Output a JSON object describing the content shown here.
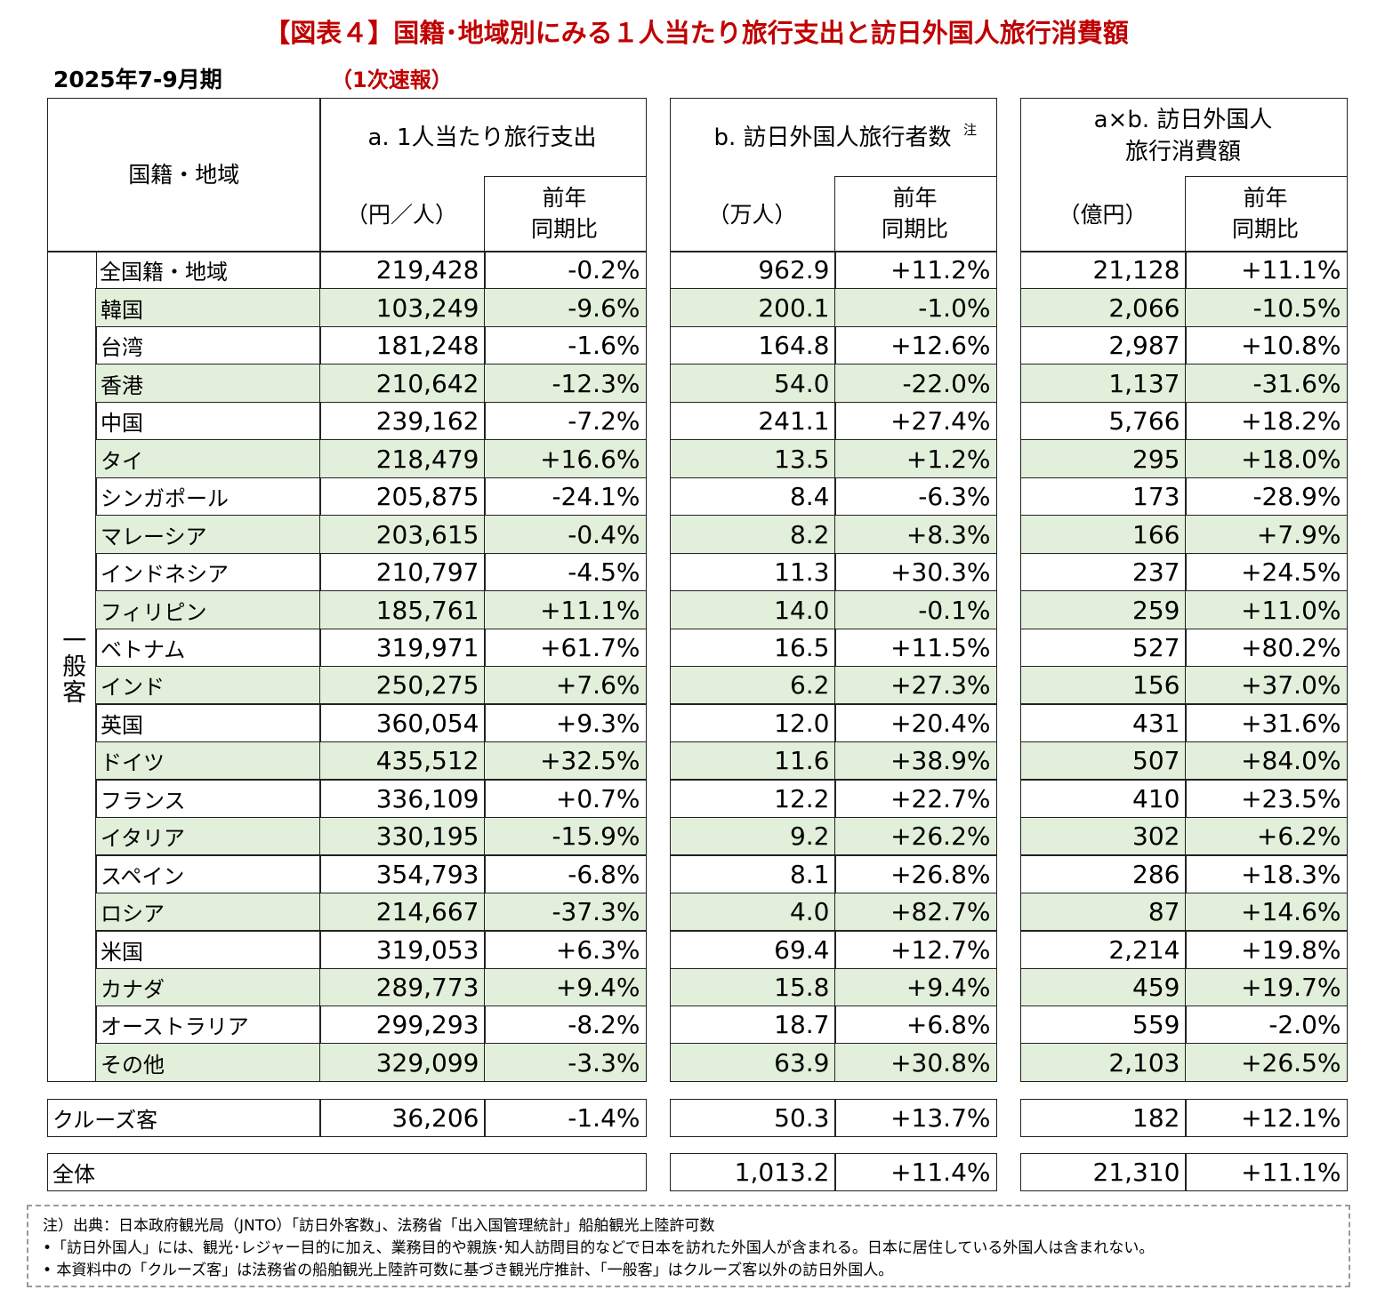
{
  "header": {
    "title": "【図表４】国籍･地域別にみる１人当たり旅行支出と訪日外国人旅行消費額",
    "period": "2025年7-9月期",
    "status": "（1次速報）"
  },
  "table": {
    "region_header": "国籍・地域",
    "group_label": "一般客",
    "columns": [
      {
        "title": [
          "a. 1人当たり旅行支出"
        ],
        "unit": "（円／人）",
        "yoy": [
          "前年",
          "同期比"
        ]
      },
      {
        "title": [
          "b. 訪日外国人旅行者数"
        ],
        "note_mark": "注",
        "unit": "（万人）",
        "yoy": [
          "前年",
          "同期比"
        ]
      },
      {
        "title": [
          "a×b. 訪日外国人",
          "旅行消費額"
        ],
        "unit": "（億円）",
        "yoy": [
          "前年",
          "同期比"
        ]
      }
    ],
    "rows": [
      [
        "全国籍・地域",
        "219,428",
        "-0.2%",
        "962.9",
        "+11.2%",
        "21,128",
        "+11.1%"
      ],
      [
        "韓国",
        "103,249",
        "-9.6%",
        "200.1",
        "-1.0%",
        "2,066",
        "-10.5%"
      ],
      [
        "台湾",
        "181,248",
        "-1.6%",
        "164.8",
        "+12.6%",
        "2,987",
        "+10.8%"
      ],
      [
        "香港",
        "210,642",
        "-12.3%",
        "54.0",
        "-22.0%",
        "1,137",
        "-31.6%"
      ],
      [
        "中国",
        "239,162",
        "-7.2%",
        "241.1",
        "+27.4%",
        "5,766",
        "+18.2%"
      ],
      [
        "タイ",
        "218,479",
        "+16.6%",
        "13.5",
        "+1.2%",
        "295",
        "+18.0%"
      ],
      [
        "シンガポール",
        "205,875",
        "-24.1%",
        "8.4",
        "-6.3%",
        "173",
        "-28.9%"
      ],
      [
        "マレーシア",
        "203,615",
        "-0.4%",
        "8.2",
        "+8.3%",
        "166",
        "+7.9%"
      ],
      [
        "インドネシア",
        "210,797",
        "-4.5%",
        "11.3",
        "+30.3%",
        "237",
        "+24.5%"
      ],
      [
        "フィリピン",
        "185,761",
        "+11.1%",
        "14.0",
        "-0.1%",
        "259",
        "+11.0%"
      ],
      [
        "ベトナム",
        "319,971",
        "+61.7%",
        "16.5",
        "+11.5%",
        "527",
        "+80.2%"
      ],
      [
        "インド",
        "250,275",
        "+7.6%",
        "6.2",
        "+27.3%",
        "156",
        "+37.0%"
      ],
      [
        "英国",
        "360,054",
        "+9.3%",
        "12.0",
        "+20.4%",
        "431",
        "+31.6%"
      ],
      [
        "ドイツ",
        "435,512",
        "+32.5%",
        "11.6",
        "+38.9%",
        "507",
        "+84.0%"
      ],
      [
        "フランス",
        "336,109",
        "+0.7%",
        "12.2",
        "+22.7%",
        "410",
        "+23.5%"
      ],
      [
        "イタリア",
        "330,195",
        "-15.9%",
        "9.2",
        "+26.2%",
        "302",
        "+6.2%"
      ],
      [
        "スペイン",
        "354,793",
        "-6.8%",
        "8.1",
        "+26.8%",
        "286",
        "+18.3%"
      ],
      [
        "ロシア",
        "214,667",
        "-37.3%",
        "4.0",
        "+82.7%",
        "87",
        "+14.6%"
      ],
      [
        "米国",
        "319,053",
        "+6.3%",
        "69.4",
        "+12.7%",
        "2,214",
        "+19.8%"
      ],
      [
        "カナダ",
        "289,773",
        "+9.4%",
        "15.8",
        "+9.4%",
        "459",
        "+19.7%"
      ],
      [
        "オーストラリア",
        "299,293",
        "-8.2%",
        "18.7",
        "+6.8%",
        "559",
        "-2.0%"
      ],
      [
        "その他",
        "329,099",
        "-3.3%",
        "63.9",
        "+30.8%",
        "2,103",
        "+26.5%"
      ]
    ],
    "cruise": [
      "クルーズ客",
      "36,206",
      "-1.4%",
      "50.3",
      "+13.7%",
      "182",
      "+12.1%"
    ],
    "total": {
      "label": "全体",
      "cells": [
        "1,013.2",
        "+11.4%",
        "21,310",
        "+11.1%"
      ]
    }
  },
  "notes": [
    "注）出典：日本政府観光局（JNTO）「訪日外客数」、法務省「出入国管理統計」船舶観光上陸許可数",
    "•「訪日外国人」には、観光･レジャー目的に加え、業務目的や親族･知人訪問目的などで日本を訪れた外国人が含まれる。日本に居住している外国人は含まれない。",
    "• 本資料中の「クルーズ客」は法務省の船舶観光上陸許可数に基づき観光庁推計、「一般客」はクルーズ客以外の訪日外国人。"
  ]
}
